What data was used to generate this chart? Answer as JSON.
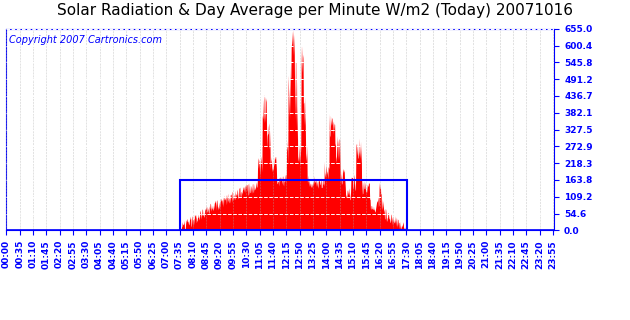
{
  "title": "Solar Radiation & Day Average per Minute W/m2 (Today) 20071016",
  "copyright": "Copyright 2007 Cartronics.com",
  "yticks": [
    0.0,
    54.6,
    109.2,
    163.8,
    218.3,
    272.9,
    327.5,
    382.1,
    436.7,
    491.2,
    545.8,
    600.4,
    655.0
  ],
  "ymax": 655.0,
  "ymin": 0.0,
  "bg_color": "#ffffff",
  "bar_color": "#ff0000",
  "avg_box_color": "#0000ff",
  "avg_value": 163.8,
  "dawn_min": 456,
  "dusk_min": 1051,
  "tick_interval_min": 35,
  "n_points": 1440,
  "title_fontsize": 11,
  "copyright_fontsize": 7,
  "tick_fontsize": 6.5
}
